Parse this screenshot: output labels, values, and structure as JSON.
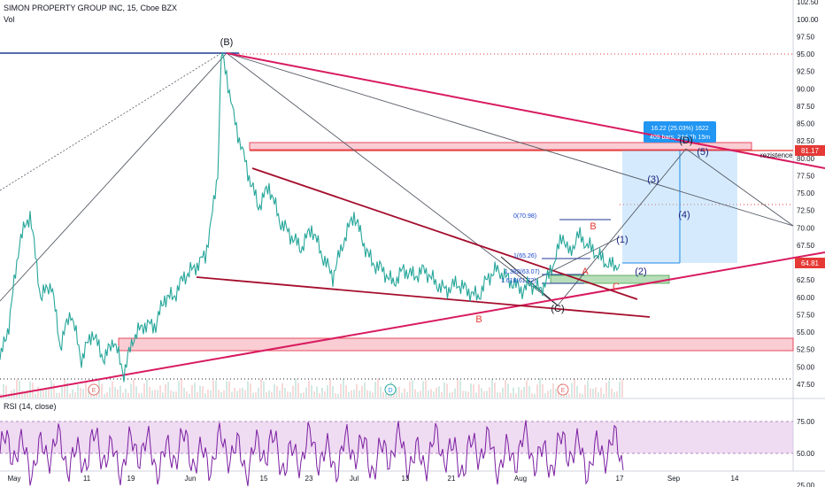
{
  "header": {
    "title": "SIMON PROPERTY GROUP INC, 15, Cboe BZX",
    "vol_label": "Vol"
  },
  "rsi_label": "RSI (14, close)",
  "chart_data": {
    "type": "candlestick",
    "title": "SIMON PROPERTY GROUP INC, 15, Cboe BZX",
    "y_ticks": [
      "102.50",
      "100.00",
      "97.50",
      "95.00",
      "92.50",
      "90.00",
      "87.50",
      "85.00",
      "82.50",
      "80.00",
      "77.50",
      "75.00",
      "72.50",
      "70.00",
      "67.50",
      "65.00",
      "62.50",
      "60.00",
      "57.50",
      "55.00",
      "52.50",
      "50.00",
      "47.50"
    ],
    "rsi_ticks": [
      "75.00",
      "50.00",
      "25.00"
    ],
    "x_ticks": [
      "May",
      "11",
      "19",
      "Jun",
      "15",
      "23",
      "Jul",
      "13",
      "21",
      "Aug",
      "17",
      "Sep",
      "14"
    ],
    "price_labels": {
      "current": "64.81",
      "resistance": "81.17"
    },
    "price_path": [
      [
        0,
        51
      ],
      [
        10,
        56
      ],
      [
        22,
        68
      ],
      [
        34,
        72
      ],
      [
        46,
        60
      ],
      [
        58,
        62
      ],
      [
        68,
        53
      ],
      [
        80,
        58
      ],
      [
        92,
        51
      ],
      [
        104,
        55
      ],
      [
        118,
        51
      ],
      [
        128,
        54
      ],
      [
        140,
        49
      ],
      [
        150,
        54
      ],
      [
        162,
        56
      ],
      [
        176,
        56
      ],
      [
        186,
        60
      ],
      [
        196,
        60
      ],
      [
        208,
        63
      ],
      [
        218,
        64
      ],
      [
        232,
        66
      ],
      [
        240,
        72
      ],
      [
        246,
        78
      ],
      [
        250,
        95
      ],
      [
        256,
        92
      ],
      [
        264,
        86
      ],
      [
        272,
        82
      ],
      [
        280,
        78
      ],
      [
        292,
        73
      ],
      [
        304,
        76
      ],
      [
        316,
        71
      ],
      [
        328,
        69
      ],
      [
        340,
        67
      ],
      [
        352,
        70
      ],
      [
        364,
        66
      ],
      [
        376,
        63
      ],
      [
        388,
        68
      ],
      [
        400,
        72
      ],
      [
        410,
        68
      ],
      [
        420,
        65
      ],
      [
        432,
        64
      ],
      [
        444,
        62
      ],
      [
        456,
        64
      ],
      [
        468,
        63
      ],
      [
        480,
        64
      ],
      [
        492,
        62
      ],
      [
        504,
        61
      ],
      [
        516,
        62
      ],
      [
        528,
        61
      ],
      [
        540,
        60
      ],
      [
        552,
        63
      ],
      [
        562,
        64
      ],
      [
        570,
        63
      ],
      [
        580,
        62
      ],
      [
        590,
        61
      ],
      [
        600,
        62
      ],
      [
        610,
        61
      ],
      [
        620,
        63
      ],
      [
        628,
        66
      ],
      [
        636,
        69
      ],
      [
        644,
        66
      ],
      [
        652,
        69
      ],
      [
        660,
        68
      ],
      [
        668,
        67
      ],
      [
        676,
        66
      ],
      [
        684,
        65
      ],
      [
        692,
        64.5
      ],
      [
        700,
        64.81
      ]
    ],
    "annotations": [
      "(B)",
      "B",
      "(C)",
      "A",
      "C",
      "B",
      "(1)",
      "(2)",
      "(3)",
      "(4)",
      "(5)",
      "(D)",
      "rezistence",
      "E",
      "D",
      "E"
    ],
    "fib_labels": [
      "0(70.98)",
      "1(65.26)",
      "1.382(63.07)",
      "1.618(61.72)"
    ],
    "measure_box": {
      "line1": "16.22 (25.03%) 1622",
      "line2": "409 bars, 24d 7h 15m"
    }
  }
}
